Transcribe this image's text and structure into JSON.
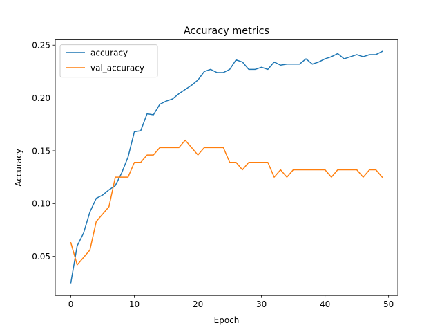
{
  "chart_data": {
    "type": "line",
    "title": "Accuracy metrics",
    "xlabel": "Epoch",
    "ylabel": "Accuracy",
    "xlim": [
      -2.45,
      51.45
    ],
    "ylim": [
      0.013,
      0.255
    ],
    "xticks": [
      0,
      10,
      20,
      30,
      40,
      50
    ],
    "xtick_labels": [
      "0",
      "10",
      "20",
      "30",
      "40",
      "50"
    ],
    "yticks": [
      0.05,
      0.1,
      0.15,
      0.2,
      0.25
    ],
    "ytick_labels": [
      "0.05",
      "0.10",
      "0.15",
      "0.20",
      "0.25"
    ],
    "grid": false,
    "legend_position": "upper-left",
    "x": [
      0,
      1,
      2,
      3,
      4,
      5,
      6,
      7,
      8,
      9,
      10,
      11,
      12,
      13,
      14,
      15,
      16,
      17,
      18,
      19,
      20,
      21,
      22,
      23,
      24,
      25,
      26,
      27,
      28,
      29,
      30,
      31,
      32,
      33,
      34,
      35,
      36,
      37,
      38,
      39,
      40,
      41,
      42,
      43,
      44,
      45,
      46,
      47,
      48,
      49
    ],
    "series": [
      {
        "name": "accuracy",
        "color": "#1f77b4",
        "values": [
          0.025,
          0.06,
          0.072,
          0.092,
          0.105,
          0.108,
          0.113,
          0.117,
          0.129,
          0.144,
          0.168,
          0.169,
          0.185,
          0.184,
          0.194,
          0.197,
          0.199,
          0.204,
          0.208,
          0.212,
          0.217,
          0.225,
          0.227,
          0.224,
          0.224,
          0.227,
          0.236,
          0.234,
          0.227,
          0.227,
          0.229,
          0.227,
          0.234,
          0.231,
          0.232,
          0.232,
          0.232,
          0.237,
          0.232,
          0.234,
          0.237,
          0.239,
          0.242,
          0.237,
          0.239,
          0.241,
          0.239,
          0.241,
          0.241,
          0.244
        ]
      },
      {
        "name": "val_accuracy",
        "color": "#ff7f0e",
        "values": [
          0.063,
          0.042,
          0.049,
          0.056,
          0.083,
          0.09,
          0.097,
          0.125,
          0.125,
          0.125,
          0.139,
          0.139,
          0.146,
          0.146,
          0.153,
          0.153,
          0.153,
          0.153,
          0.16,
          0.153,
          0.146,
          0.153,
          0.153,
          0.153,
          0.153,
          0.139,
          0.139,
          0.132,
          0.139,
          0.139,
          0.139,
          0.139,
          0.125,
          0.132,
          0.125,
          0.132,
          0.132,
          0.132,
          0.132,
          0.132,
          0.132,
          0.125,
          0.132,
          0.132,
          0.132,
          0.132,
          0.125,
          0.132,
          0.132,
          0.125
        ]
      }
    ]
  }
}
